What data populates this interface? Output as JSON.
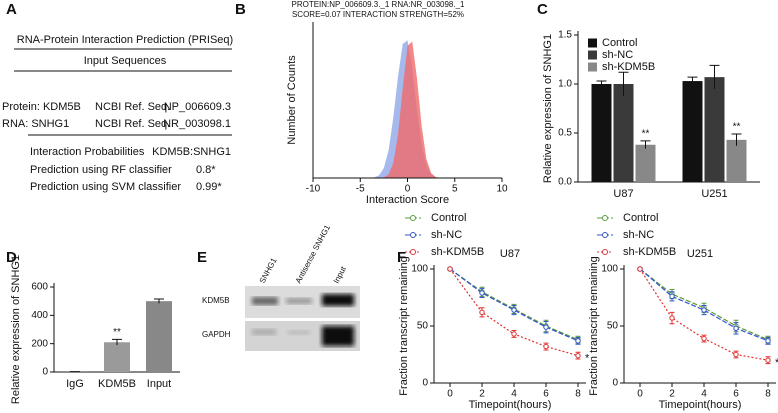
{
  "panel_labels": [
    "A",
    "B",
    "C",
    "D",
    "E",
    "F"
  ],
  "prediction": {
    "title": "RNA-Protein Interaction Prediction (PRISeq)",
    "subtitle": "Input Sequences",
    "rows": [
      [
        "Protein: KDM5B",
        "NCBI Ref. Seq.",
        "NP_006609.3"
      ],
      [
        "RNA: SNHG1",
        "NCBI Ref. Seq.",
        "NR_003098.1"
      ]
    ],
    "interaction": [
      "Interaction Probabilities",
      "KDM5B:SNHG1"
    ],
    "classifiers": [
      [
        "Prediction using RF classifier",
        "0.8*"
      ],
      [
        "Prediction using SVM classifier",
        "0.99*"
      ]
    ]
  },
  "blot": {
    "lanes": [
      "SNHG1",
      "Antisense SNHG1",
      "Input"
    ],
    "rows": [
      "KDM5B",
      "GAPDH"
    ]
  },
  "chart_data": [
    {
      "type": "area",
      "title": "PROTEIN:NP_006609.3._1 RNA:NR_003098._1",
      "subtitle": "SCORE=0.07 INTERACTION STRENGTH=52%",
      "x_label": "Interaction Score",
      "y_label": "Number of Counts",
      "x": [
        -4,
        -3.5,
        -3,
        -2.5,
        -2,
        -1.5,
        -1,
        -0.5,
        0,
        0.5,
        1,
        1.5,
        2,
        2.5,
        3,
        3.5,
        4
      ],
      "series": [
        {
          "color": "#8fa8e8",
          "values": [
            0.1,
            0.4,
            1.8,
            6.4,
            17.8,
            38.7,
            65.3,
            86,
            88.2,
            70.5,
            43.8,
            21.2,
            8,
            2.4,
            0.5,
            0.1,
            0
          ]
        },
        {
          "color": "#f06a6a",
          "values": [
            0,
            0,
            0,
            0.4,
            2.3,
            9.6,
            28,
            57.8,
            84.6,
            87.6,
            64,
            33.2,
            12.2,
            3.2,
            0.6,
            0.1,
            0
          ]
        }
      ],
      "xlim": [
        -10,
        10
      ],
      "xticks": [
        -10,
        -5,
        0,
        5,
        10
      ],
      "ylim": [
        0,
        100
      ]
    },
    {
      "type": "bar",
      "y_label": "Relative expression of SNHG1",
      "categories": [
        "U87",
        "U251"
      ],
      "series": [
        {
          "name": "Control",
          "color": "#111111",
          "values": [
            1.0,
            1.03
          ],
          "errors": [
            0.03,
            0.04
          ]
        },
        {
          "name": "sh-NC",
          "color": "#3a3a3a",
          "values": [
            1.0,
            1.07
          ],
          "errors": [
            0.12,
            0.12
          ]
        },
        {
          "name": "sh-KDM5B",
          "color": "#888888",
          "values": [
            0.38,
            0.43
          ],
          "errors": [
            0.04,
            0.06
          ],
          "significance": [
            "**",
            "**"
          ]
        }
      ],
      "ylim": [
        0,
        1.5
      ],
      "yticks": [
        {
          "value": 0,
          "label": "0.0"
        },
        {
          "value": 0.5,
          "label": "0.5"
        },
        {
          "value": 1,
          "label": "1.0"
        },
        {
          "value": 1.5,
          "label": "1.5"
        }
      ],
      "legend": "upper-left"
    },
    {
      "type": "bar",
      "y_label": "Relative expression of SNHG1",
      "categories": [
        "IgG",
        "KDM5B",
        "Input"
      ],
      "values": [
        2,
        210,
        500
      ],
      "errors": [
        1,
        20,
        15
      ],
      "colors": [
        "#333333",
        "#9a9a9a",
        "#888888"
      ],
      "significance": [
        null,
        "**",
        null
      ],
      "ylim": [
        0,
        600
      ],
      "yticks": [
        0,
        200,
        400,
        600
      ]
    },
    {
      "type": "line",
      "title": "U87",
      "x_label": "Timepoint(hours)",
      "y_label": "Fraction transcript remaining",
      "x": [
        0,
        2,
        4,
        6,
        8
      ],
      "xlim": [
        -1,
        8.5
      ],
      "xticks": [
        0,
        2,
        4,
        6,
        8
      ],
      "ylim": [
        0,
        100
      ],
      "yticks": [
        0,
        50,
        100
      ],
      "series": [
        {
          "name": "Control",
          "color": "#5a9a3a",
          "values": [
            100,
            80,
            65,
            50,
            38
          ],
          "errors": [
            1,
            4,
            4,
            5,
            3
          ]
        },
        {
          "name": "sh-NC",
          "color": "#3355cc",
          "values": [
            100,
            79,
            64,
            49,
            37
          ],
          "errors": [
            1,
            4,
            4,
            5,
            3
          ]
        },
        {
          "name": "sh-KDM5B",
          "color": "#e03030",
          "values": [
            100,
            62,
            43,
            32,
            24
          ],
          "errors": [
            1,
            4,
            3,
            3,
            3
          ],
          "significance": "*"
        }
      ]
    },
    {
      "type": "line",
      "title": "U251",
      "x_label": "Timepoint(hours)",
      "y_label": "Fraction transcript remaining",
      "x": [
        0,
        2,
        4,
        6,
        8
      ],
      "xlim": [
        -1,
        8.5
      ],
      "xticks": [
        0,
        2,
        4,
        6,
        8
      ],
      "ylim": [
        0,
        100
      ],
      "yticks": [
        0,
        50,
        100
      ],
      "series": [
        {
          "name": "Control",
          "color": "#5a9a3a",
          "values": [
            100,
            78,
            66,
            50,
            38
          ],
          "errors": [
            1,
            4,
            4,
            5,
            3
          ]
        },
        {
          "name": "sh-NC",
          "color": "#3355cc",
          "values": [
            100,
            76,
            64,
            48,
            37
          ],
          "errors": [
            1,
            4,
            4,
            5,
            3
          ]
        },
        {
          "name": "sh-KDM5B",
          "color": "#e03030",
          "values": [
            100,
            57,
            39,
            25,
            20
          ],
          "errors": [
            1,
            5,
            3,
            3,
            3
          ],
          "significance": "*"
        }
      ]
    }
  ]
}
